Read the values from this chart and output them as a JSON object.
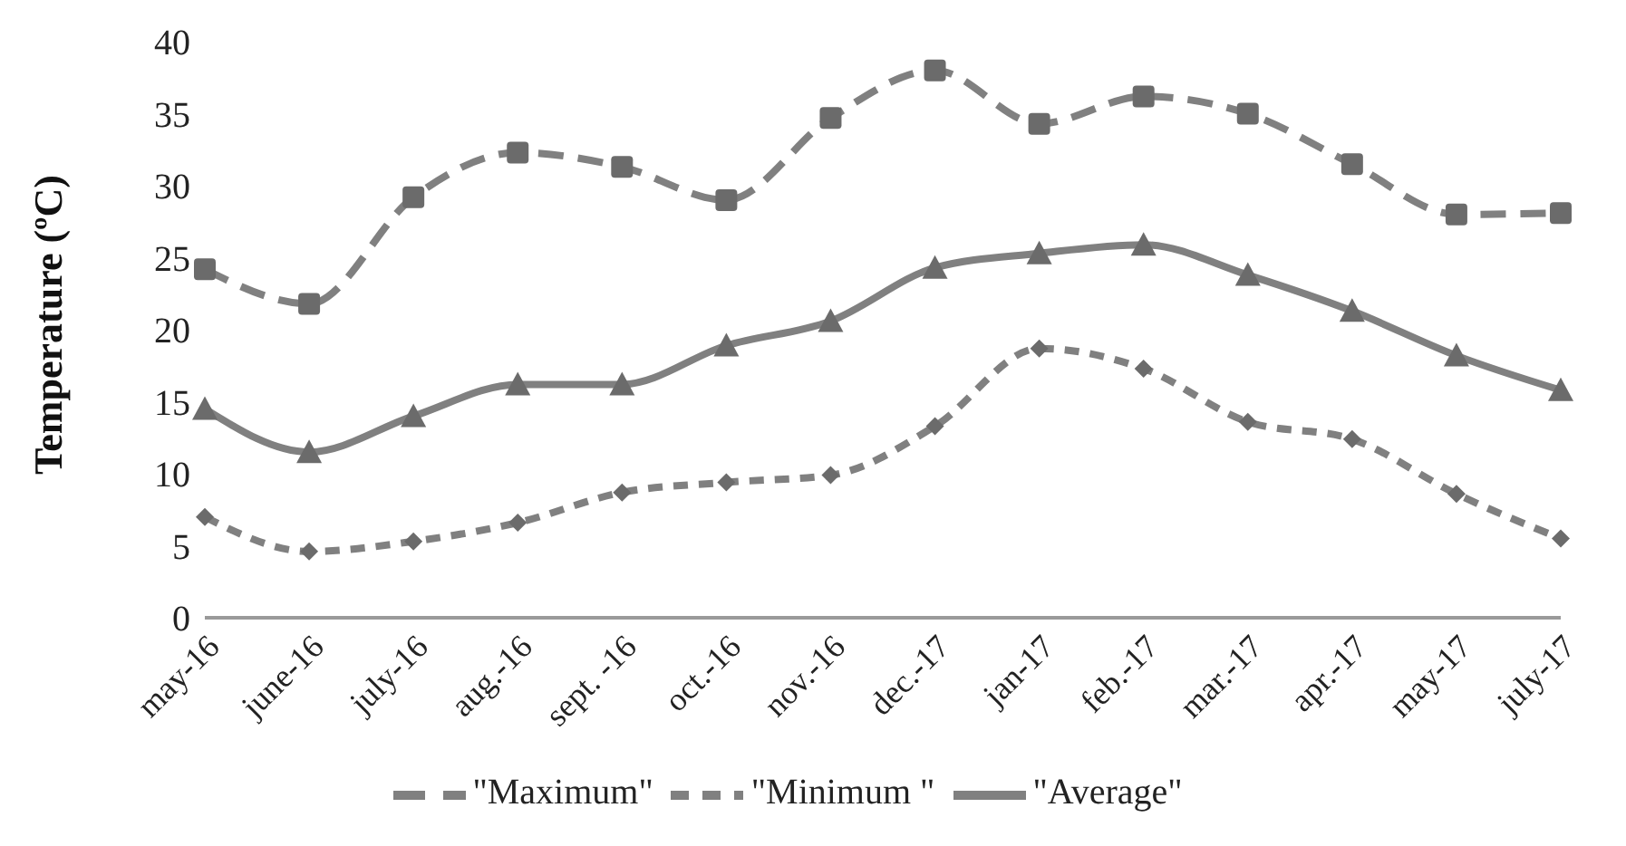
{
  "chart_data": {
    "type": "line",
    "ylabel": "Temperature (ºC)",
    "categories": [
      "may-16",
      "june-16",
      "july-16",
      "aug.-16",
      "sept. -16",
      "oct.-16",
      "nov.-16",
      "dec.-17",
      "jan-17",
      "feb.-17",
      "mar.-17",
      "apr.-17",
      "may-17",
      "july-17"
    ],
    "series": [
      {
        "name": "\"Maximum\"",
        "color": "#808080",
        "marker": "square",
        "line_style": "dashed",
        "values": [
          24.2,
          21.8,
          29.2,
          32.3,
          31.3,
          29.0,
          34.7,
          38.0,
          34.3,
          36.2,
          35.0,
          31.5,
          28.0,
          28.1
        ]
      },
      {
        "name": "\"Minimum \"",
        "color": "#808080",
        "marker": "diamond",
        "line_style": "dotted",
        "values": [
          7.0,
          4.6,
          5.3,
          6.6,
          8.7,
          9.4,
          9.9,
          13.3,
          18.7,
          17.3,
          13.6,
          12.4,
          8.6,
          5.5
        ]
      },
      {
        "name": "\"Average\"",
        "color": "#808080",
        "marker": "triangle",
        "line_style": "solid",
        "values": [
          14.5,
          11.5,
          14.0,
          16.2,
          16.2,
          18.9,
          20.6,
          24.3,
          25.3,
          25.9,
          23.8,
          21.3,
          18.2,
          15.8
        ]
      }
    ],
    "ylim": [
      0,
      40
    ],
    "yticks": [
      0,
      5,
      10,
      15,
      20,
      25,
      30,
      35,
      40
    ],
    "grid": false,
    "legend": "bottom"
  }
}
